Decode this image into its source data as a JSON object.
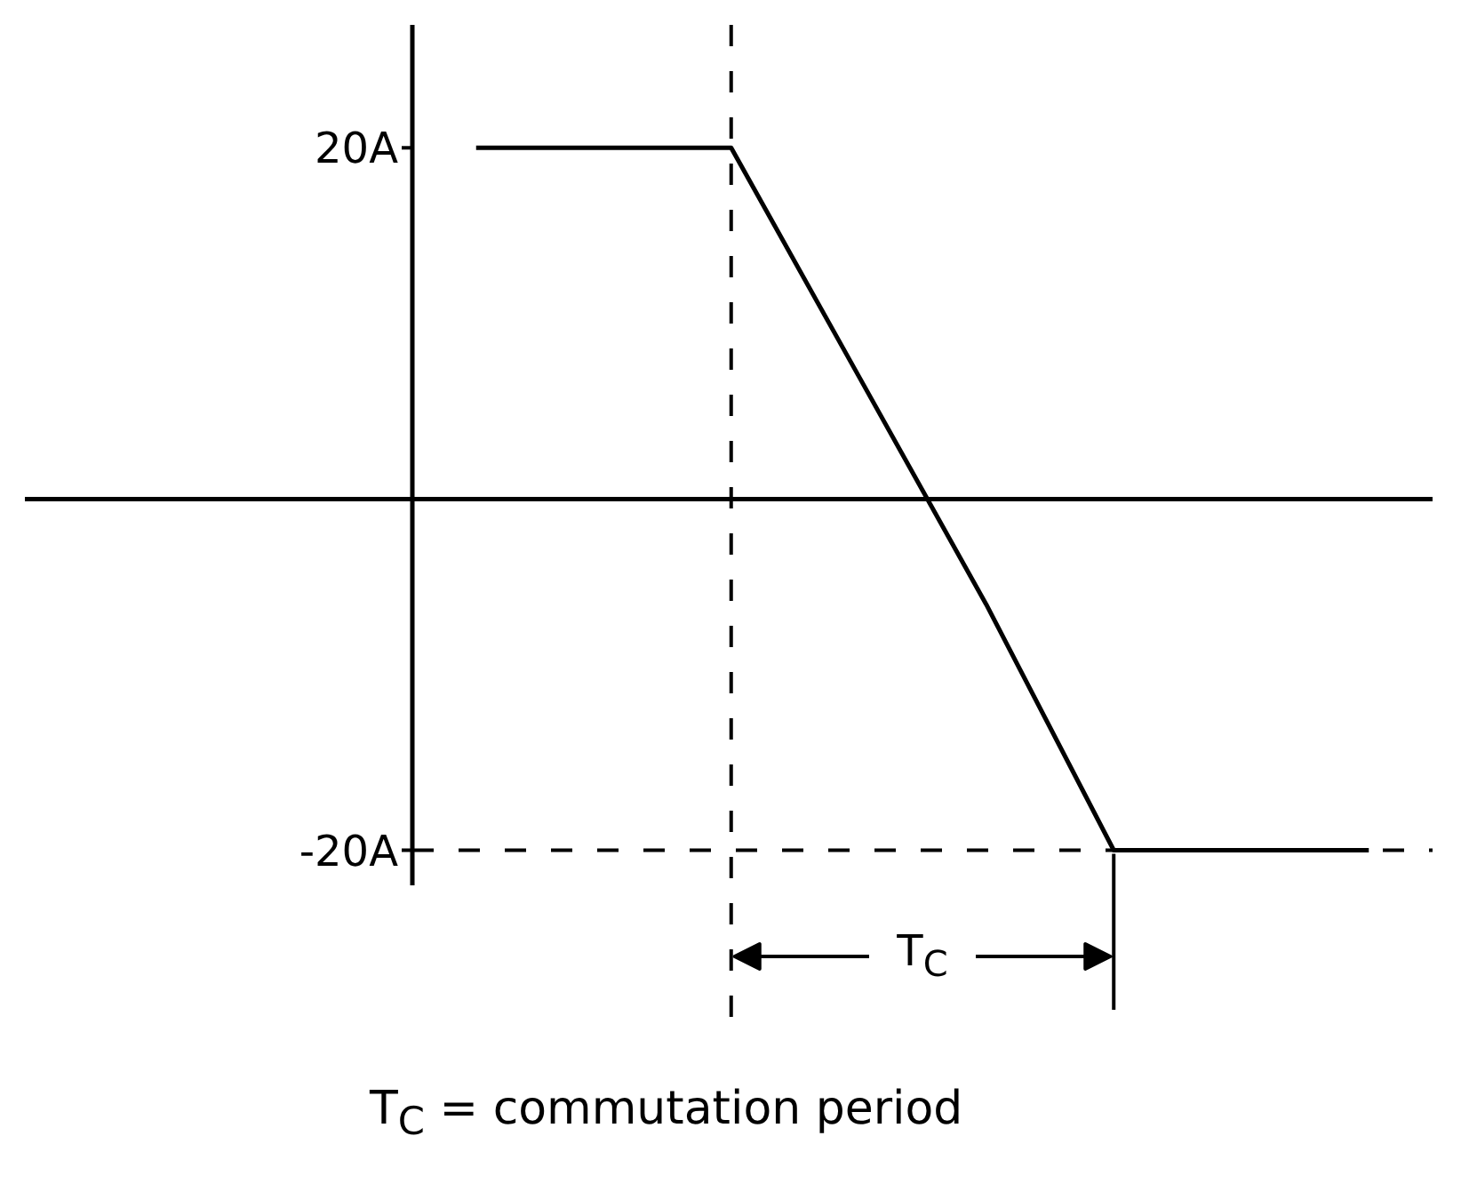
{
  "chart_data": {
    "type": "line",
    "categories": [
      null,
      null,
      null,
      null,
      null,
      null,
      null,
      null
    ],
    "values": [
      20,
      20,
      20,
      7,
      -6,
      -20,
      -20,
      -20
    ],
    "color": "#000000",
    "ylim": [
      -22,
      27
    ],
    "yticks": [
      {
        "value": 20,
        "label": "20A"
      },
      {
        "value": -20,
        "label": "-20A"
      }
    ],
    "ref_lines": [
      {
        "axis": "y",
        "value": -20,
        "line_style": "dashed",
        "color": "#000000"
      }
    ],
    "annotations": [
      "T$_{C}$",
      "T$_{C}$ = commutation period"
    ]
  }
}
